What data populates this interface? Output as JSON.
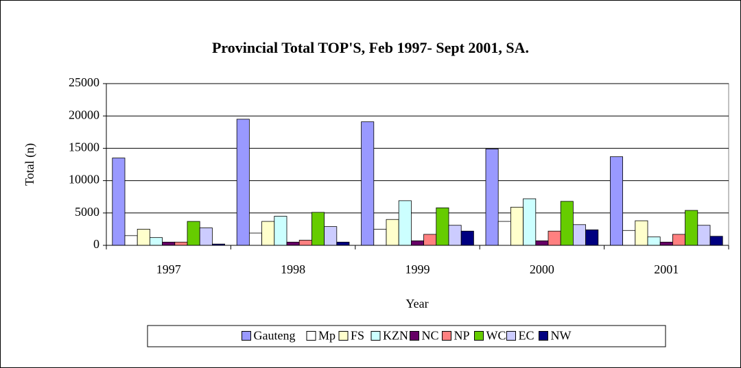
{
  "chart_data": {
    "type": "bar",
    "title": "Provincial Total  TOP'S, Feb 1997- Sept 2001, SA.",
    "x_label": "Year",
    "y_label": "Total (n)",
    "categories": [
      "1997",
      "1998",
      "1999",
      "2000",
      "2001"
    ],
    "series": [
      {
        "name": "Gauteng",
        "color": "#9999ff",
        "values": [
          13500,
          19500,
          19100,
          14900,
          13700
        ]
      },
      {
        "name": "Mp",
        "color": "#ffffff",
        "values": [
          1500,
          1900,
          2500,
          3700,
          2300
        ]
      },
      {
        "name": "FS",
        "color": "#ffffcc",
        "values": [
          2500,
          3700,
          4000,
          5900,
          3800
        ]
      },
      {
        "name": "KZN",
        "color": "#ccffff",
        "values": [
          1200,
          4500,
          6900,
          7200,
          1300
        ]
      },
      {
        "name": "NC",
        "color": "#660066",
        "values": [
          500,
          500,
          700,
          700,
          500
        ]
      },
      {
        "name": "NP",
        "color": "#ff8080",
        "values": [
          500,
          800,
          1700,
          2200,
          1700
        ]
      },
      {
        "name": "WC",
        "color": "#66cc00",
        "values": [
          3700,
          5100,
          5800,
          6800,
          5400
        ]
      },
      {
        "name": "EC",
        "color": "#ccccff",
        "values": [
          2700,
          2900,
          3100,
          3200,
          3100
        ]
      },
      {
        "name": "NW",
        "color": "#000080",
        "values": [
          200,
          500,
          2200,
          2400,
          1400
        ]
      }
    ],
    "ylim": [
      0,
      25000
    ],
    "yticks": [
      0,
      5000,
      10000,
      15000,
      20000,
      25000
    ],
    "grid": true,
    "legend": "bottom"
  }
}
